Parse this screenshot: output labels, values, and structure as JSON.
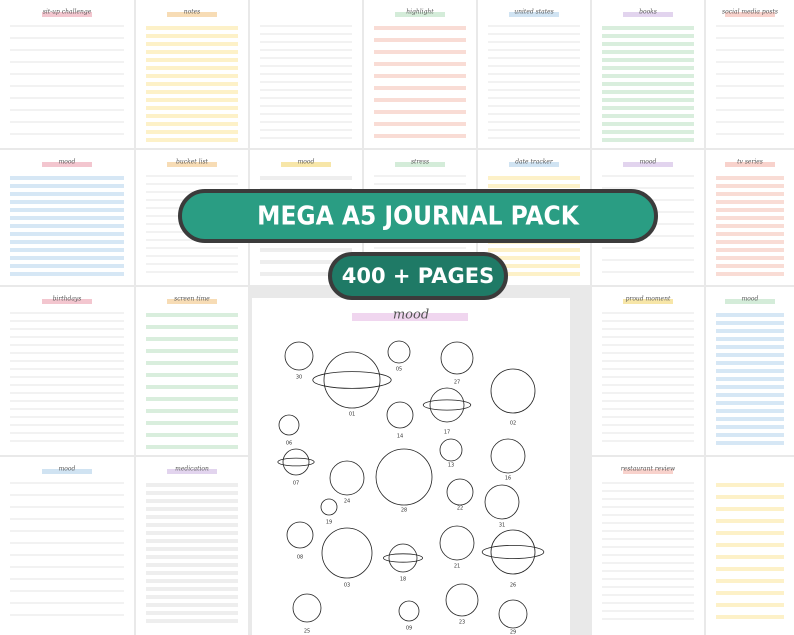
{
  "banner": {
    "title": "MEGA A5 JOURNAL PACK",
    "subtitle": "400 + PAGES"
  },
  "pages": [
    {
      "title": "sit-up challenge"
    },
    {
      "title": "notes"
    },
    {
      "kind": "calendar"
    },
    {
      "title": "highlight"
    },
    {
      "title": "united states"
    },
    {
      "title": "books"
    },
    {
      "title": "social media posts"
    },
    {
      "title": "mood"
    },
    {
      "title": "bucket list"
    },
    {
      "title": "mood"
    },
    {
      "title": "stress"
    },
    {
      "title": "date tracker"
    },
    {
      "title": "mood"
    },
    {
      "title": "tv series"
    },
    {
      "title": "birthdays"
    },
    {
      "title": "screen time"
    },
    {
      "title": "proud moment"
    },
    {
      "title": "mood"
    },
    {
      "title": "mood"
    },
    {
      "title": "medication"
    },
    {
      "title": "restaurant review"
    },
    {
      "kind": "list"
    }
  ],
  "mood_page": {
    "title": "mood",
    "labels": [
      "30",
      "01",
      "05",
      "27",
      "02",
      "06",
      "14",
      "17",
      "13",
      "07",
      "24",
      "28",
      "16",
      "19",
      "22",
      "08",
      "31",
      "03",
      "18",
      "21",
      "26",
      "25",
      "09",
      "23",
      "29"
    ]
  }
}
